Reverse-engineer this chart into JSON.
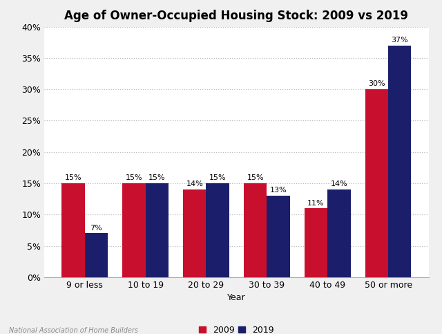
{
  "title": "Age of Owner-Occupied Housing Stock: 2009 vs 2019",
  "categories": [
    "9 or less",
    "10 to 19",
    "20 to 29",
    "30 to 39",
    "40 to 49",
    "50 or more"
  ],
  "values_2009": [
    15,
    15,
    14,
    15,
    11,
    30
  ],
  "values_2019": [
    7,
    15,
    15,
    13,
    14,
    37
  ],
  "color_2009": "#C8102E",
  "color_2019": "#1B1F6B",
  "xlabel": "Year",
  "ylim": [
    0,
    40
  ],
  "yticks": [
    0,
    5,
    10,
    15,
    20,
    25,
    30,
    35,
    40
  ],
  "ytick_labels": [
    "0%",
    "5%",
    "10%",
    "15%",
    "20%",
    "25%",
    "30%",
    "35%",
    "40%"
  ],
  "legend_labels": [
    "2009",
    "2019"
  ],
  "footnote": "National Association of Home Builders",
  "bar_width": 0.38,
  "background_color": "#FFFFFF",
  "fig_background_color": "#F0F0F0",
  "grid_color": "#BBBBBB",
  "title_fontsize": 12,
  "label_fontsize": 9,
  "tick_fontsize": 9,
  "annotation_fontsize": 8
}
